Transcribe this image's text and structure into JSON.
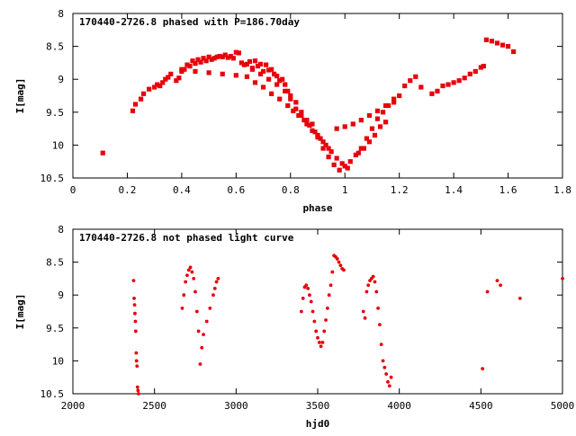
{
  "chart_data": [
    {
      "type": "scatter",
      "title": "170440-2726.8 phased with P=186.70day",
      "xlabel": "phase",
      "ylabel": "I[mag]",
      "xlim": [
        0,
        1.8
      ],
      "ylim": [
        8,
        10.5
      ],
      "y_inverted": true,
      "xticks": [
        "0",
        "0.2",
        "0.4",
        "0.6",
        "0.8",
        "1",
        "1.2",
        "1.4",
        "1.6",
        "1.8"
      ],
      "yticks": [
        "8",
        "8.5",
        "9",
        "9.5",
        "10",
        "10.5"
      ],
      "grid": false,
      "marker": "filled-square",
      "series": [
        {
          "color": "#e8000b",
          "x": [
            0.11,
            0.22,
            0.23,
            0.25,
            0.26,
            0.28,
            0.3,
            0.31,
            0.32,
            0.33,
            0.34,
            0.35,
            0.36,
            0.38,
            0.39,
            0.4,
            0.41,
            0.42,
            0.43,
            0.44,
            0.45,
            0.46,
            0.47,
            0.48,
            0.49,
            0.5,
            0.51,
            0.52,
            0.53,
            0.54,
            0.55,
            0.56,
            0.57,
            0.58,
            0.59,
            0.6,
            0.61,
            0.62,
            0.63,
            0.64,
            0.65,
            0.66,
            0.67,
            0.68,
            0.69,
            0.7,
            0.71,
            0.72,
            0.73,
            0.74,
            0.75,
            0.76,
            0.77,
            0.78,
            0.79,
            0.8,
            0.82,
            0.84,
            0.86,
            0.88,
            0.9,
            0.92,
            0.94,
            0.96,
            0.98,
            1.0,
            1.02,
            1.04,
            1.06,
            1.08,
            1.1,
            1.12,
            1.14,
            1.16,
            1.18,
            1.2,
            1.22,
            1.24,
            1.26,
            1.28,
            1.32,
            1.34,
            1.36,
            1.38,
            1.4,
            1.42,
            1.44,
            1.46,
            1.48,
            1.5,
            1.51,
            1.52,
            1.54,
            1.56,
            1.58,
            1.6,
            1.62,
            0.66,
            0.69,
            0.72,
            0.75,
            0.78,
            0.8,
            0.82,
            0.84,
            0.86,
            0.88,
            0.9,
            0.92,
            0.94,
            0.97,
            1.0,
            1.03,
            1.06,
            1.09,
            1.12,
            1.15,
            1.18,
            0.4,
            0.45,
            0.5,
            0.55,
            0.6,
            0.64,
            0.67,
            0.7,
            0.73,
            0.76,
            0.79,
            0.81,
            0.83,
            0.85,
            0.87,
            0.89,
            0.91,
            0.93,
            0.95,
            0.97,
            0.99,
            1.01,
            1.05,
            1.07,
            1.09,
            1.11,
            1.13,
            1.15
          ],
          "y": [
            10.12,
            9.48,
            9.38,
            9.3,
            9.22,
            9.15,
            9.12,
            9.08,
            9.1,
            9.05,
            9.0,
            8.97,
            8.92,
            9.02,
            8.98,
            8.88,
            8.85,
            8.78,
            8.8,
            8.72,
            8.76,
            8.7,
            8.74,
            8.68,
            8.72,
            8.66,
            8.7,
            8.68,
            8.66,
            8.65,
            8.66,
            8.63,
            8.67,
            8.65,
            8.68,
            8.59,
            8.6,
            8.75,
            8.78,
            8.77,
            8.73,
            8.83,
            8.72,
            8.8,
            8.77,
            8.88,
            8.78,
            8.86,
            8.85,
            8.92,
            8.95,
            9.02,
            9.0,
            9.08,
            9.18,
            9.25,
            9.35,
            9.5,
            9.62,
            9.68,
            9.88,
            10.05,
            10.18,
            10.3,
            10.38,
            10.32,
            10.25,
            10.15,
            10.05,
            9.9,
            9.75,
            9.6,
            9.5,
            9.4,
            9.35,
            9.25,
            9.1,
            9.02,
            8.96,
            9.12,
            9.22,
            9.18,
            9.1,
            9.08,
            9.05,
            9.02,
            8.98,
            8.92,
            8.88,
            8.82,
            8.8,
            8.4,
            8.42,
            8.45,
            8.48,
            8.5,
            8.58,
            8.85,
            8.92,
            9.0,
            9.08,
            9.18,
            9.3,
            9.45,
            9.55,
            9.68,
            9.78,
            9.85,
            9.95,
            10.05,
            9.75,
            9.72,
            9.68,
            9.62,
            9.55,
            9.48,
            9.4,
            9.3,
            8.85,
            8.88,
            8.9,
            8.92,
            8.94,
            8.96,
            9.05,
            9.12,
            9.22,
            9.3,
            9.4,
            9.48,
            9.55,
            9.62,
            9.7,
            9.8,
            9.9,
            10.0,
            10.1,
            10.2,
            10.28,
            10.35,
            10.12,
            10.05,
            9.95,
            9.85,
            9.72,
            9.65
          ]
        }
      ]
    },
    {
      "type": "scatter",
      "title": "170440-2726.8 not phased light curve",
      "xlabel": "hjd0",
      "ylabel": "I[mag]",
      "xlim": [
        2000,
        5000
      ],
      "ylim": [
        8,
        10.5
      ],
      "y_inverted": true,
      "xticks": [
        "2000",
        "2500",
        "3000",
        "3500",
        "4000",
        "4500",
        "5000"
      ],
      "yticks": [
        "8",
        "8.5",
        "9",
        "9.5",
        "10",
        "10.5"
      ],
      "grid": false,
      "marker": "dot",
      "series": [
        {
          "color": "#e8000b",
          "x": [
            2372,
            2375,
            2378,
            2380,
            2383,
            2385,
            2388,
            2390,
            2393,
            2396,
            2399,
            2402,
            2670,
            2680,
            2690,
            2700,
            2710,
            2720,
            2730,
            2740,
            2750,
            2760,
            2770,
            2780,
            2790,
            2800,
            2820,
            2840,
            2860,
            2870,
            2880,
            2890,
            3400,
            3410,
            3420,
            3430,
            3440,
            3450,
            3460,
            3470,
            3480,
            3490,
            3500,
            3510,
            3520,
            3530,
            3540,
            3550,
            3560,
            3570,
            3580,
            3590,
            3600,
            3610,
            3620,
            3630,
            3640,
            3650,
            3660,
            3780,
            3790,
            3800,
            3810,
            3820,
            3830,
            3840,
            3850,
            3860,
            3870,
            3880,
            3890,
            3900,
            3910,
            3920,
            3930,
            3940,
            3950,
            4510,
            4540,
            4600,
            4620,
            4740,
            5000
          ],
          "y": [
            8.78,
            9.05,
            9.15,
            9.28,
            9.4,
            9.55,
            9.88,
            10.0,
            10.08,
            10.4,
            10.45,
            10.5,
            9.2,
            9.0,
            8.8,
            8.7,
            8.62,
            8.58,
            8.65,
            8.75,
            8.95,
            9.25,
            9.55,
            10.05,
            9.8,
            9.6,
            9.4,
            9.2,
            9.0,
            8.9,
            8.8,
            8.75,
            9.25,
            9.05,
            8.88,
            8.85,
            8.9,
            9.0,
            9.1,
            9.25,
            9.4,
            9.55,
            9.65,
            9.72,
            9.78,
            9.72,
            9.55,
            9.38,
            9.2,
            9.0,
            8.85,
            8.65,
            8.4,
            8.42,
            8.45,
            8.5,
            8.55,
            8.6,
            8.62,
            9.25,
            9.35,
            8.95,
            8.85,
            8.78,
            8.75,
            8.72,
            8.8,
            8.95,
            9.2,
            9.45,
            9.75,
            10.0,
            10.1,
            10.2,
            10.32,
            10.38,
            10.25,
            10.12,
            8.95,
            8.78,
            8.85,
            9.05,
            8.75
          ]
        }
      ]
    }
  ]
}
